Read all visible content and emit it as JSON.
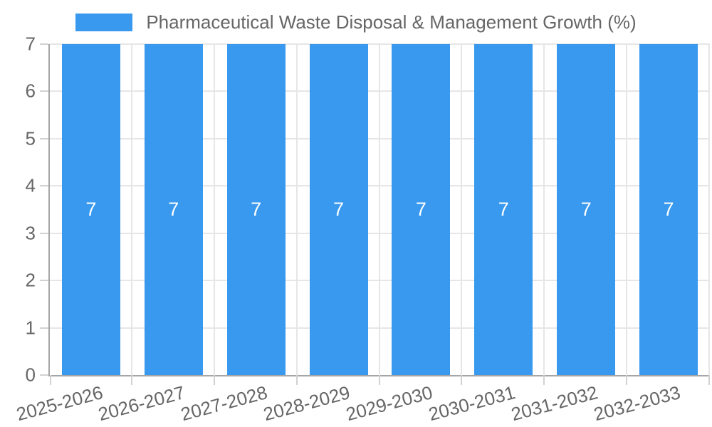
{
  "chart_data": {
    "type": "bar",
    "title": "Pharmaceutical Waste Disposal & Management Growth (%)",
    "legend": {
      "position": "top",
      "label": "Pharmaceutical Waste Disposal & Management Growth (%)"
    },
    "categories": [
      "2025-2026",
      "2026-2027",
      "2027-2028",
      "2028-2029",
      "2029-2030",
      "2030-2031",
      "2031-2032",
      "2032-2033"
    ],
    "series": [
      {
        "name": "Pharmaceutical Waste Disposal & Management Growth (%)",
        "values": [
          7,
          7,
          7,
          7,
          7,
          7,
          7,
          7
        ]
      }
    ],
    "datalabels": {
      "show": true,
      "labels": [
        "7",
        "7",
        "7",
        "7",
        "7",
        "7",
        "7",
        "7"
      ]
    },
    "xlabel": "",
    "ylabel": "",
    "ylim": [
      0,
      7
    ],
    "yticks": [
      0,
      1,
      2,
      3,
      4,
      5,
      6,
      7
    ],
    "grid": true,
    "colors": {
      "bar": "#3899EE",
      "grid": "#e6e6e6",
      "axis": "#a6a6a6",
      "tick": "#d2d2d2",
      "text": "#666666",
      "datalabel": "#ffffff",
      "background": "#ffffff"
    }
  }
}
